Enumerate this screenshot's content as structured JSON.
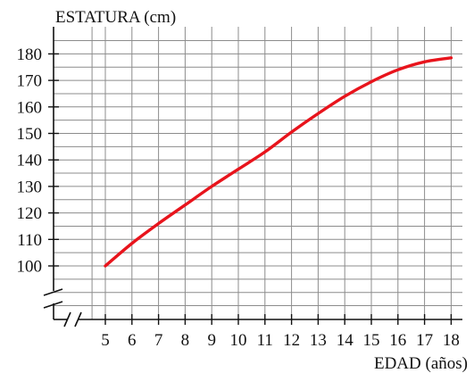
{
  "chart_data": {
    "type": "line",
    "ylabel": "ESTATURA (cm)",
    "xlabel": "EDAD (años)",
    "x_ticks": [
      5,
      6,
      7,
      8,
      9,
      10,
      11,
      12,
      13,
      14,
      15,
      16,
      17,
      18
    ],
    "y_ticks": [
      100,
      110,
      120,
      130,
      140,
      150,
      160,
      170,
      180
    ],
    "xlim": [
      4,
      18.5
    ],
    "ylim": [
      100,
      185
    ],
    "grid": true,
    "axis_breaks": true,
    "series": [
      {
        "color": "#e8141c",
        "x": [
          5,
          6,
          7,
          8,
          9,
          10,
          11,
          12,
          13,
          14,
          15,
          16,
          17,
          18
        ],
        "y": [
          100,
          108.5,
          116,
          123,
          130,
          136.5,
          143,
          150.5,
          157.5,
          164,
          169.5,
          174,
          177,
          178.5
        ]
      }
    ]
  }
}
